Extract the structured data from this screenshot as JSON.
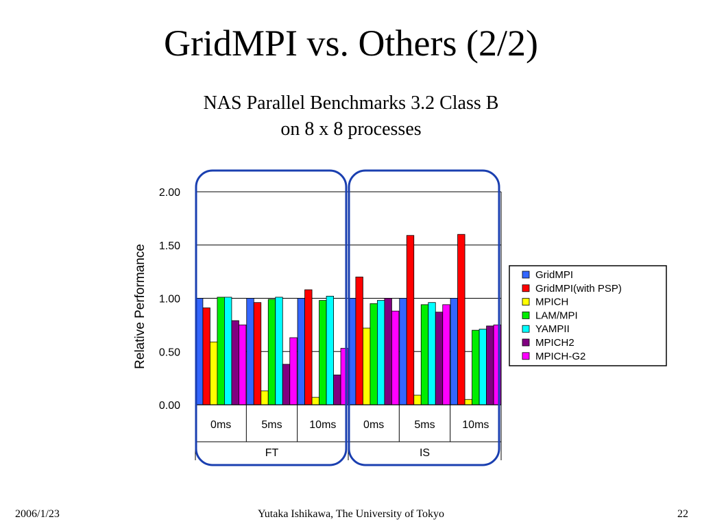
{
  "slide": {
    "title": "GridMPI vs. Others (2/2)",
    "subtitle_line1": "NAS Parallel Benchmarks 3.2 Class B",
    "subtitle_line2": "on 8 x 8 processes"
  },
  "footer": {
    "date": "2006/1/23",
    "author": "Yutaka Ishikawa, The University of Tokyo",
    "page": "22"
  },
  "colors": {
    "group_outline": "#1a3fb0",
    "gridline": "#000000"
  },
  "chart_data": {
    "type": "bar",
    "ylabel": "Relative Performance",
    "ylim": [
      0,
      2.0
    ],
    "yticks": [
      "0.00",
      "0.50",
      "1.00",
      "1.50",
      "2.00"
    ],
    "ytick_values": [
      0,
      0.5,
      1.0,
      1.5,
      2.0
    ],
    "grid": true,
    "legend_position": "right",
    "categories": [
      "0ms",
      "5ms",
      "10ms",
      "0ms",
      "5ms",
      "10ms"
    ],
    "groups": [
      {
        "label": "FT",
        "categories": [
          "0ms",
          "5ms",
          "10ms"
        ]
      },
      {
        "label": "IS",
        "categories": [
          "0ms",
          "5ms",
          "10ms"
        ]
      }
    ],
    "series": [
      {
        "name": "GridMPI",
        "color": "#3366ff",
        "values": [
          1.0,
          1.0,
          1.0,
          1.0,
          1.0,
          1.0
        ]
      },
      {
        "name": "GridMPI(with PSP)",
        "color": "#ff0000",
        "values": [
          0.91,
          0.96,
          1.08,
          1.2,
          1.59,
          1.6
        ]
      },
      {
        "name": "MPICH",
        "color": "#ffff00",
        "values": [
          0.59,
          0.13,
          0.07,
          0.72,
          0.09,
          0.05
        ]
      },
      {
        "name": "LAM/MPI",
        "color": "#00ee00",
        "values": [
          1.01,
          0.99,
          0.98,
          0.95,
          0.94,
          0.7
        ]
      },
      {
        "name": "YAMPII",
        "color": "#00ffff",
        "values": [
          1.01,
          1.01,
          1.02,
          0.98,
          0.96,
          0.71
        ]
      },
      {
        "name": "MPICH2",
        "color": "#800080",
        "values": [
          0.79,
          0.38,
          0.28,
          1.0,
          0.87,
          0.74
        ]
      },
      {
        "name": "MPICH-G2",
        "color": "#ff00ff",
        "values": [
          0.75,
          0.63,
          0.53,
          0.88,
          0.94,
          0.75
        ]
      }
    ]
  }
}
